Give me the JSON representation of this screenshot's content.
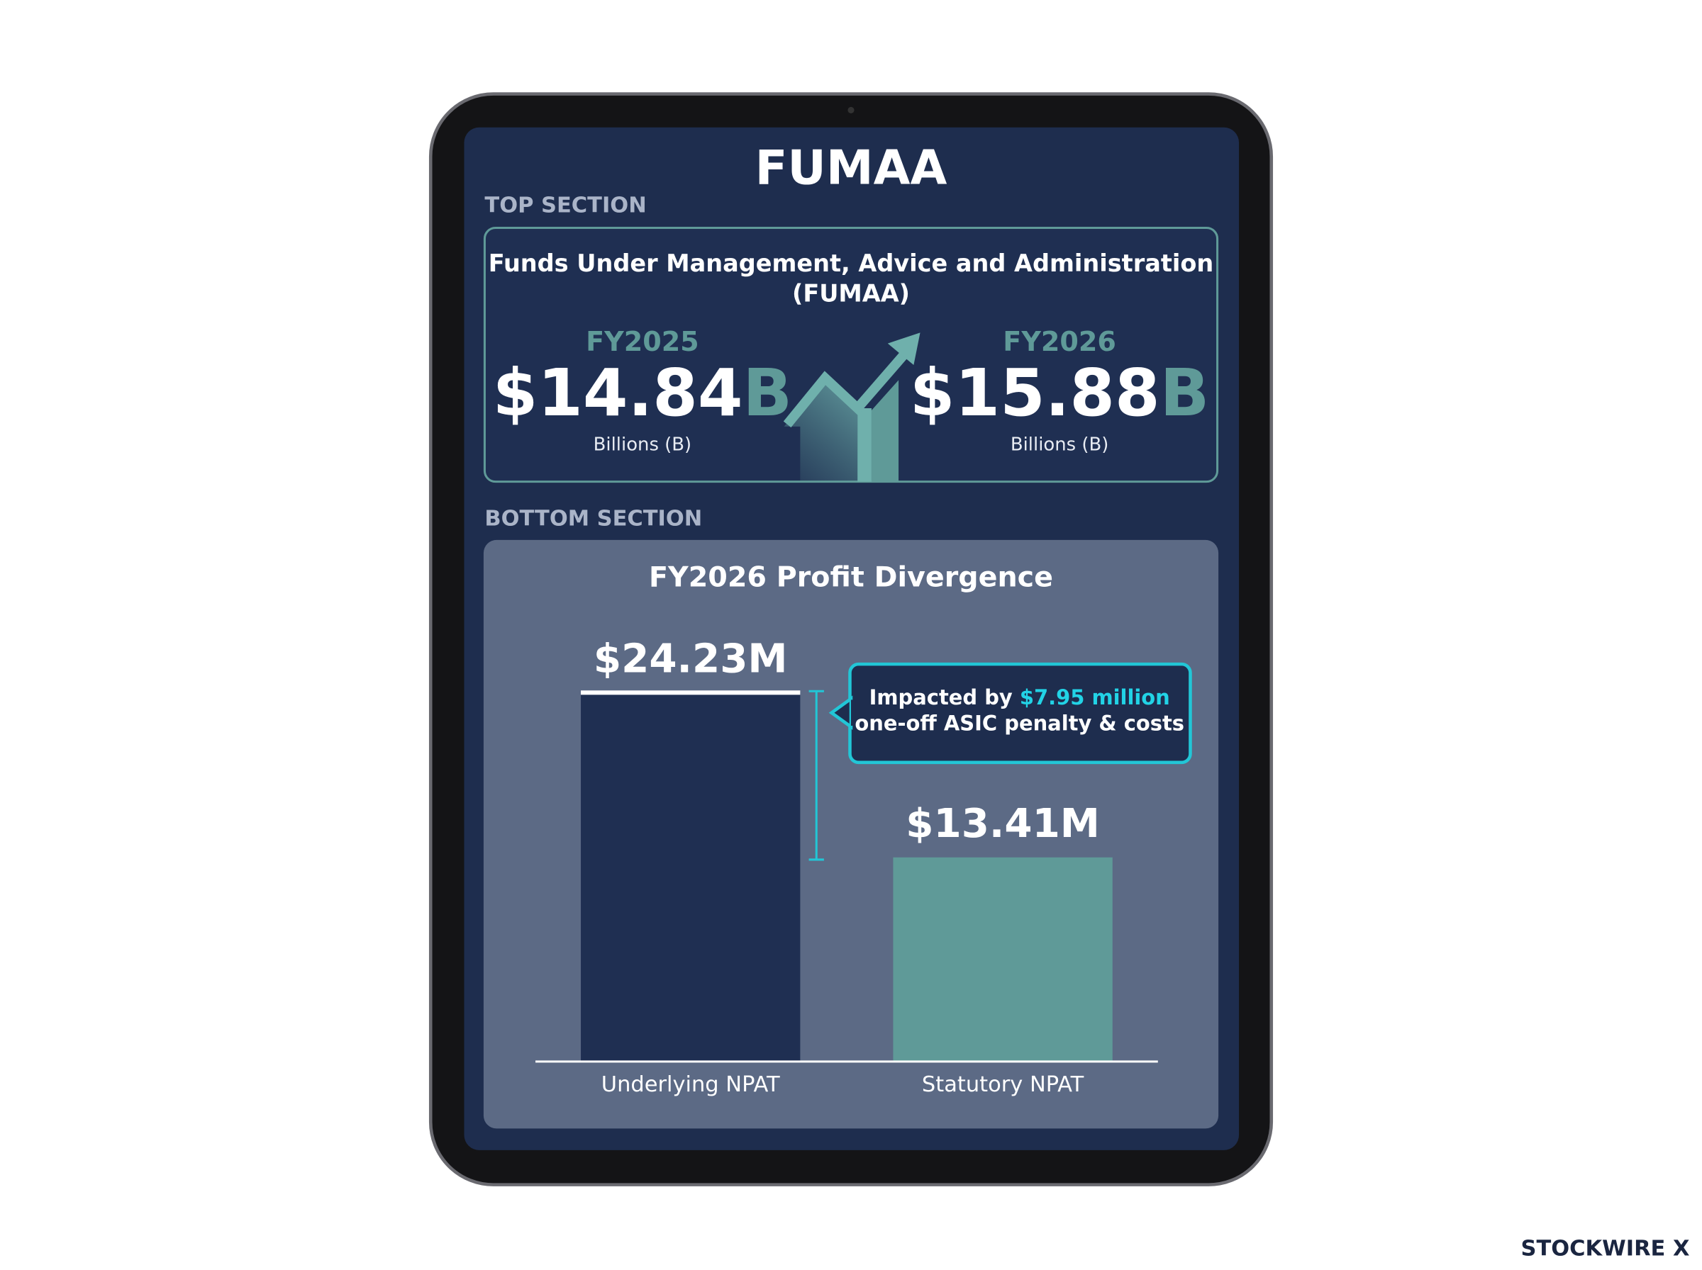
{
  "title": "FUMAA",
  "top_section": {
    "label": "TOP SECTION",
    "heading_line1": "Funds Under Management, Advice and Administration",
    "heading_line2": "(FUMAA)",
    "items": [
      {
        "year": "FY2025",
        "amount": "$14.84",
        "unit": "B",
        "caption": "Billions (B)"
      },
      {
        "year": "FY2026",
        "amount": "$15.88",
        "unit": "B",
        "caption": "Billions (B)"
      }
    ]
  },
  "bottom_label": "BOTTOM SECTION",
  "chart_data": {
    "type": "bar",
    "title": "FY2026 Profit Divergence",
    "categories": [
      "Underlying NPAT",
      "Statutory NPAT"
    ],
    "values": [
      24.23,
      13.41
    ],
    "value_labels": [
      "$24.23M",
      "$13.41M"
    ],
    "colors": [
      "#1f2f52",
      "#5f9a98"
    ],
    "ylim": [
      0,
      30
    ],
    "annotation": {
      "prefix": "Impacted by ",
      "highlight": "$7.95 million",
      "line2": "one-off ASIC penalty & costs"
    }
  },
  "watermark": "STOCKWIRE X"
}
